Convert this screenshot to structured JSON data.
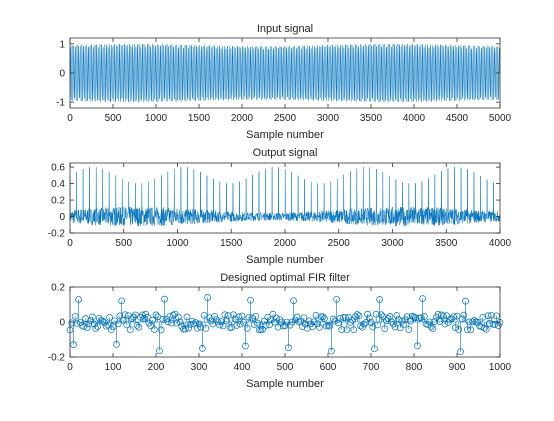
{
  "figure": {
    "background": "#ffffff",
    "line_color": "#0072BD",
    "axis_color": "#262626"
  },
  "chart_data": [
    {
      "type": "line",
      "title": "Input signal",
      "xlabel": "Sample number",
      "ylabel": "",
      "xlim": [
        0,
        5000
      ],
      "ylim": [
        -1.2,
        1.2
      ],
      "x_ticks": [
        0,
        500,
        1000,
        1500,
        2000,
        2500,
        3000,
        3500,
        4000,
        4500,
        5000
      ],
      "y_ticks": [
        -1,
        0,
        1
      ],
      "grid": false,
      "series": [
        {
          "description_values": "dense oscillation between -1 and 1 across all 5000 samples",
          "amplitude": 1.0,
          "color": "#0072BD"
        }
      ]
    },
    {
      "type": "line",
      "title": "Output signal",
      "xlabel": "Sample number",
      "ylabel": "",
      "xlim": [
        0,
        4000
      ],
      "ylim": [
        -0.2,
        0.65
      ],
      "x_ticks": [
        0,
        500,
        1000,
        1500,
        2000,
        2500,
        3000,
        3500,
        4000
      ],
      "y_ticks": [
        -0.2,
        0,
        0.2,
        0.4,
        0.6
      ],
      "grid": false,
      "series": [
        {
          "baseline_range": [
            -0.12,
            0.12
          ],
          "spike_peak_range": [
            0.4,
            0.6
          ],
          "spike_count": 66,
          "color": "#0072BD"
        }
      ]
    },
    {
      "type": "scatter",
      "stem": true,
      "title": "Designed optimal FIR filter",
      "xlabel": "Sample number",
      "ylabel": "",
      "xlim": [
        0,
        1000
      ],
      "ylim": [
        -0.2,
        0.2
      ],
      "x_ticks": [
        0,
        100,
        200,
        300,
        400,
        500,
        600,
        700,
        800,
        900,
        1000
      ],
      "y_ticks": [
        -0.2,
        0,
        0.2
      ],
      "grid": false,
      "series": [
        {
          "marker": "circle",
          "positive_peak": 0.14,
          "negative_peak": -0.17,
          "peak_spacing": 25,
          "color": "#0072BD"
        }
      ]
    }
  ]
}
